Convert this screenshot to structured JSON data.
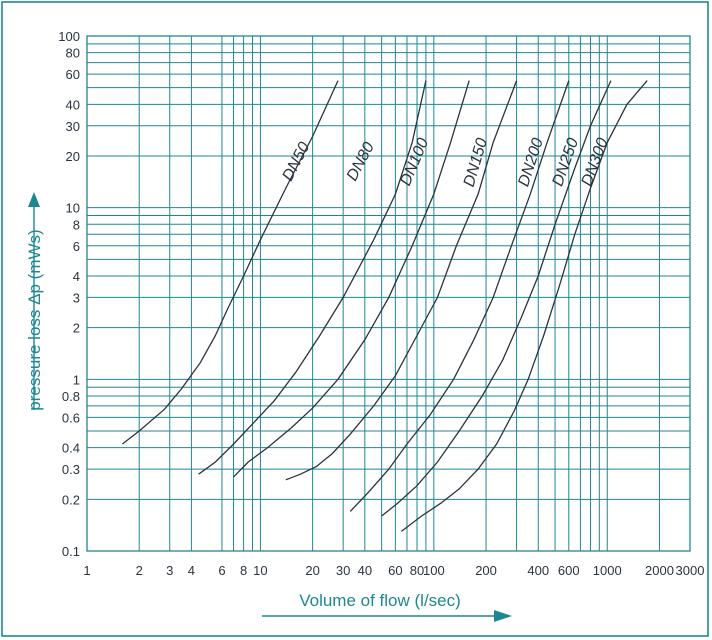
{
  "chart_data": {
    "type": "line",
    "title": "",
    "xlabel": "Volume of flow (l/sec)",
    "ylabel": "pressure loss Δp (mWs)",
    "x_scale": "log",
    "y_scale": "log",
    "xlim": [
      1,
      3000
    ],
    "ylim": [
      0.1,
      100
    ],
    "grid": true,
    "legend": "none",
    "x_ticks": [
      1,
      2,
      3,
      4,
      6,
      8,
      10,
      20,
      30,
      40,
      60,
      80,
      100,
      200,
      400,
      600,
      1000,
      2000,
      3000
    ],
    "x_tick_labels": [
      "1",
      "2",
      "3",
      "4",
      "6",
      "8",
      "10",
      "20",
      "30",
      "40",
      "60",
      "80",
      "100",
      "200",
      "400",
      "600",
      "1000",
      "2000",
      "3000"
    ],
    "y_ticks": [
      0.1,
      0.2,
      0.3,
      0.4,
      0.6,
      0.8,
      1,
      2,
      3,
      4,
      6,
      8,
      10,
      20,
      30,
      40,
      60,
      80,
      100
    ],
    "y_tick_labels": [
      "0.1",
      "0.2",
      "0.3",
      "0.4",
      "0.6",
      "0.8",
      "1",
      "2",
      "3",
      "4",
      "6",
      "8",
      "10",
      "20",
      "30",
      "40",
      "60",
      "80",
      "100"
    ],
    "x_grid": [
      1,
      2,
      3,
      4,
      6,
      7,
      8,
      9,
      10,
      20,
      30,
      40,
      50,
      60,
      70,
      80,
      90,
      100,
      200,
      300,
      400,
      500,
      600,
      700,
      800,
      900,
      1000,
      2000,
      3000
    ],
    "y_grid": [
      0.1,
      0.2,
      0.3,
      0.4,
      0.5,
      0.6,
      0.7,
      0.8,
      0.9,
      1,
      2,
      3,
      4,
      5,
      6,
      7,
      8,
      9,
      10,
      20,
      30,
      40,
      50,
      60,
      70,
      80,
      90,
      100
    ],
    "series": [
      {
        "name": "DN50",
        "points": [
          [
            1.6,
            0.42
          ],
          [
            2.0,
            0.5
          ],
          [
            2.8,
            0.67
          ],
          [
            3.5,
            0.88
          ],
          [
            4.5,
            1.25
          ],
          [
            5.5,
            1.8
          ],
          [
            6.5,
            2.6
          ],
          [
            8,
            4.0
          ],
          [
            10,
            6.5
          ],
          [
            14,
            13
          ],
          [
            20,
            26
          ],
          [
            28,
            55
          ]
        ],
        "label_at": [
          17,
          18
        ]
      },
      {
        "name": "DN80",
        "points": [
          [
            4.4,
            0.28
          ],
          [
            5.5,
            0.33
          ],
          [
            7.0,
            0.42
          ],
          [
            9,
            0.55
          ],
          [
            12,
            0.75
          ],
          [
            16,
            1.1
          ],
          [
            22,
            1.8
          ],
          [
            30,
            3.0
          ],
          [
            45,
            6.5
          ],
          [
            60,
            12
          ],
          [
            75,
            24
          ],
          [
            90,
            55
          ]
        ],
        "label_at": [
          40,
          18
        ]
      },
      {
        "name": "DN100",
        "points": [
          [
            7,
            0.27
          ],
          [
            8.5,
            0.33
          ],
          [
            11,
            0.4
          ],
          [
            15,
            0.52
          ],
          [
            20,
            0.68
          ],
          [
            28,
            1.0
          ],
          [
            40,
            1.7
          ],
          [
            55,
            3.0
          ],
          [
            75,
            6.0
          ],
          [
            100,
            12
          ],
          [
            125,
            24
          ],
          [
            160,
            55
          ]
        ],
        "label_at": [
          82,
          18
        ]
      },
      {
        "name": "DN150",
        "points": [
          [
            14,
            0.26
          ],
          [
            17,
            0.28
          ],
          [
            21,
            0.31
          ],
          [
            26,
            0.37
          ],
          [
            33,
            0.48
          ],
          [
            45,
            0.7
          ],
          [
            60,
            1.05
          ],
          [
            80,
            1.8
          ],
          [
            105,
            3.0
          ],
          [
            135,
            6.0
          ],
          [
            180,
            12
          ],
          [
            220,
            24
          ],
          [
            300,
            55
          ]
        ],
        "label_at": [
          185,
          18
        ]
      },
      {
        "name": "DN200",
        "points": [
          [
            33,
            0.17
          ],
          [
            42,
            0.22
          ],
          [
            55,
            0.3
          ],
          [
            70,
            0.42
          ],
          [
            95,
            0.62
          ],
          [
            130,
            1.0
          ],
          [
            170,
            1.7
          ],
          [
            220,
            3.0
          ],
          [
            280,
            6.0
          ],
          [
            360,
            12
          ],
          [
            450,
            24
          ],
          [
            600,
            55
          ]
        ],
        "label_at": [
          385,
          18
        ]
      },
      {
        "name": "DN250",
        "points": [
          [
            50,
            0.16
          ],
          [
            62,
            0.19
          ],
          [
            80,
            0.24
          ],
          [
            105,
            0.33
          ],
          [
            140,
            0.5
          ],
          [
            190,
            0.8
          ],
          [
            250,
            1.3
          ],
          [
            320,
            2.3
          ],
          [
            400,
            4.0
          ],
          [
            500,
            8.0
          ],
          [
            650,
            17
          ],
          [
            800,
            30
          ],
          [
            1050,
            55
          ]
        ],
        "label_at": [
          610,
          18
        ]
      },
      {
        "name": "DN300",
        "points": [
          [
            65,
            0.13
          ],
          [
            85,
            0.16
          ],
          [
            110,
            0.19
          ],
          [
            140,
            0.23
          ],
          [
            180,
            0.3
          ],
          [
            230,
            0.42
          ],
          [
            290,
            0.65
          ],
          [
            350,
            1.0
          ],
          [
            430,
            1.8
          ],
          [
            530,
            3.5
          ],
          [
            650,
            7.0
          ],
          [
            800,
            13
          ],
          [
            1000,
            24
          ],
          [
            1300,
            40
          ],
          [
            1700,
            55
          ]
        ],
        "label_at": [
          900,
          18
        ]
      }
    ]
  }
}
